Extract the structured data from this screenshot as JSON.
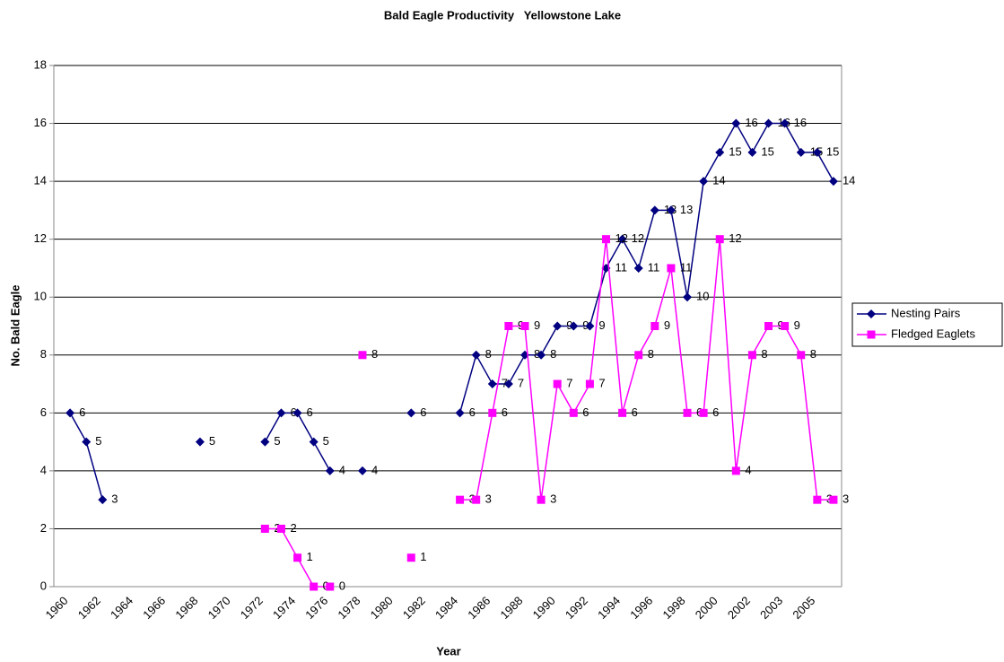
{
  "chart_data": {
    "type": "line",
    "title": "Bald Eagle Productivity   Yellowstone Lake",
    "x_label": "Year",
    "y_label": "No. Bald Eagle",
    "categories": [
      "1960",
      null,
      "1962",
      null,
      "1964",
      null,
      "1966",
      null,
      "1968",
      null,
      "1970",
      null,
      "1972",
      null,
      "1974",
      null,
      "1976",
      null,
      "1978",
      null,
      "1980",
      null,
      "1982",
      null,
      "1984",
      null,
      "1986",
      null,
      "1988",
      null,
      "1990",
      null,
      "1992",
      null,
      "1994",
      null,
      "1996",
      null,
      "1998",
      null,
      "2000",
      null,
      "2002",
      null,
      "2003",
      null,
      "2005",
      null
    ],
    "series": [
      {
        "name": "Nesting Pairs",
        "color": "#000080",
        "marker": "diamond",
        "values": [
          6,
          5,
          3,
          null,
          null,
          null,
          null,
          null,
          5,
          null,
          null,
          null,
          5,
          6,
          6,
          5,
          4,
          null,
          4,
          null,
          null,
          6,
          null,
          null,
          6,
          8,
          7,
          7,
          8,
          8,
          9,
          9,
          9,
          11,
          12,
          11,
          13,
          13,
          10,
          14,
          15,
          16,
          15,
          16,
          16,
          15,
          15,
          14
        ]
      },
      {
        "name": "Fledged Eaglets",
        "color": "#ff00ff",
        "marker": "square",
        "values": [
          null,
          null,
          null,
          null,
          null,
          null,
          null,
          null,
          null,
          null,
          null,
          null,
          2,
          2,
          1,
          0,
          0,
          null,
          8,
          null,
          null,
          1,
          null,
          null,
          3,
          3,
          6,
          9,
          9,
          3,
          7,
          6,
          7,
          12,
          6,
          8,
          9,
          11,
          6,
          6,
          12,
          4,
          8,
          9,
          9,
          8,
          3,
          3
        ]
      }
    ],
    "ylim": [
      0,
      18
    ],
    "yticks": [
      0,
      2,
      4,
      6,
      8,
      10,
      12,
      14,
      16,
      18
    ],
    "grid": true,
    "legend": "right"
  }
}
